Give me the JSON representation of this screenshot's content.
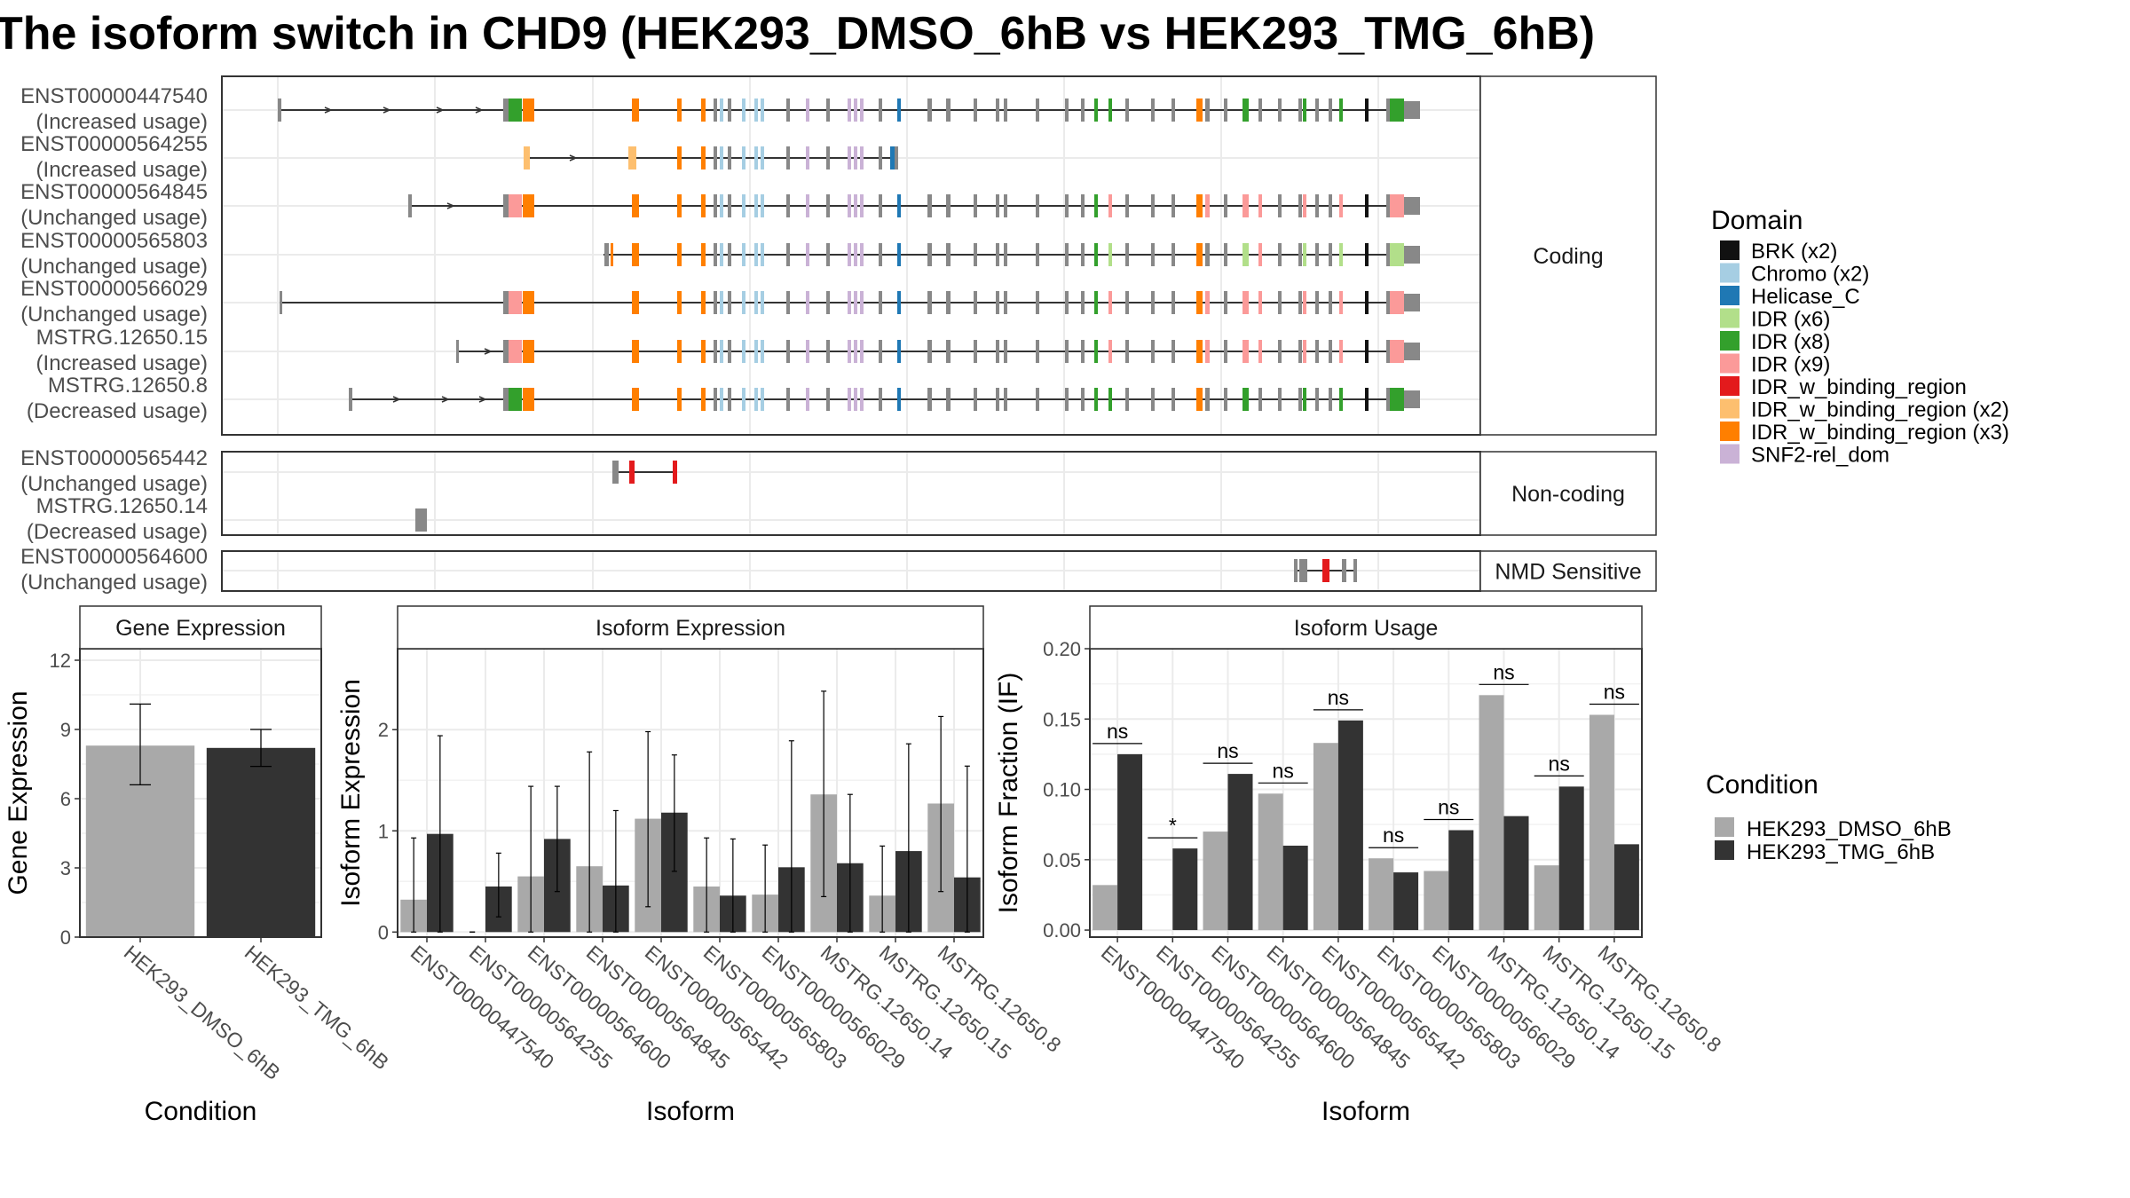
{
  "title": "The isoform switch in CHD9 (HEK293_DMSO_6hB vs HEK293_TMG_6hB)",
  "domain_legend": {
    "title": "Domain",
    "items": [
      {
        "label": "BRK (x2)",
        "color": "#111111"
      },
      {
        "label": "Chromo (x2)",
        "color": "#a6cee3"
      },
      {
        "label": "Helicase_C",
        "color": "#1f78b4"
      },
      {
        "label": "IDR (x6)",
        "color": "#b2df8a"
      },
      {
        "label": "IDR (x8)",
        "color": "#33a02c"
      },
      {
        "label": "IDR (x9)",
        "color": "#fb9a99"
      },
      {
        "label": "IDR_w_binding_region",
        "color": "#e31a1c"
      },
      {
        "label": "IDR_w_binding_region (x2)",
        "color": "#fdbf6f"
      },
      {
        "label": "IDR_w_binding_region (x3)",
        "color": "#ff7f00"
      },
      {
        "label": "SNF2-rel_dom",
        "color": "#cab2d6"
      }
    ]
  },
  "condition_legend": {
    "title": "Condition",
    "items": [
      {
        "label": "HEK293_DMSO_6hB",
        "color": "#a9a9a9"
      },
      {
        "label": "HEK293_TMG_6hB",
        "color": "#333333"
      }
    ]
  },
  "structure_panels": [
    {
      "strip": "Coding",
      "transcripts": [
        {
          "id": "ENST00000447540",
          "usage": "(Increased usage)"
        },
        {
          "id": "ENST00000564255",
          "usage": "(Increased usage)"
        },
        {
          "id": "ENST00000564845",
          "usage": "(Unchanged usage)"
        },
        {
          "id": "ENST00000565803",
          "usage": "(Unchanged usage)"
        },
        {
          "id": "ENST00000566029",
          "usage": "(Unchanged usage)"
        },
        {
          "id": "MSTRG.12650.15",
          "usage": "(Increased usage)"
        },
        {
          "id": "MSTRG.12650.8",
          "usage": "(Decreased usage)"
        }
      ]
    },
    {
      "strip": "Non-coding",
      "transcripts": [
        {
          "id": "ENST00000565442",
          "usage": "(Unchanged usage)"
        },
        {
          "id": "MSTRG.12650.14",
          "usage": "(Decreased usage)"
        }
      ]
    },
    {
      "strip": "NMD Sensitive",
      "transcripts": [
        {
          "id": "ENST00000564600",
          "usage": "(Unchanged usage)"
        }
      ]
    }
  ],
  "chart_data": [
    {
      "type": "bar",
      "title": "Gene Expression",
      "xlabel": "Condition",
      "ylabel": "Gene Expression",
      "categories": [
        "HEK293_DMSO_6hB",
        "HEK293_TMG_6hB"
      ],
      "values": [
        8.3,
        8.2
      ],
      "err_low": [
        6.6,
        7.4
      ],
      "err_high": [
        10.1,
        9.0
      ],
      "ylim": [
        0,
        12.5
      ],
      "yticks": [
        0,
        3,
        6,
        9,
        12
      ],
      "ytick_labels": [
        "0",
        "3",
        "6",
        "9",
        "12"
      ]
    },
    {
      "type": "bar",
      "title": "Isoform Expression",
      "xlabel": "Isoform",
      "ylabel": "Isoform Expression",
      "categories": [
        "ENST00000447540",
        "ENST00000564255",
        "ENST00000564600",
        "ENST00000564845",
        "ENST00000565442",
        "ENST00000565803",
        "ENST00000566029",
        "MSTRG.12650.14",
        "MSTRG.12650.15",
        "MSTRG.12650.8"
      ],
      "series": [
        {
          "name": "HEK293_DMSO_6hB",
          "values": [
            0.32,
            0.0,
            0.55,
            0.65,
            1.12,
            0.45,
            0.37,
            1.36,
            0.36,
            1.27
          ],
          "err_low": [
            0.0,
            0.0,
            0.0,
            0.0,
            0.25,
            0.0,
            0.0,
            0.35,
            0.0,
            0.4
          ],
          "err_high": [
            0.93,
            0.0,
            1.44,
            1.78,
            1.98,
            0.93,
            0.86,
            2.38,
            0.85,
            2.13
          ]
        },
        {
          "name": "HEK293_TMG_6hB",
          "values": [
            0.97,
            0.45,
            0.92,
            0.46,
            1.18,
            0.36,
            0.64,
            0.68,
            0.8,
            0.54
          ],
          "err_low": [
            0.0,
            0.15,
            0.4,
            0.0,
            0.6,
            0.0,
            0.0,
            0.0,
            0.0,
            0.0
          ],
          "err_high": [
            1.94,
            0.78,
            1.44,
            1.2,
            1.75,
            0.92,
            1.89,
            1.36,
            1.86,
            1.64
          ]
        }
      ],
      "ylim": [
        -0.05,
        2.8
      ],
      "yticks": [
        0,
        1,
        2
      ],
      "ytick_labels": [
        "0",
        "1",
        "2"
      ]
    },
    {
      "type": "bar",
      "title": "Isoform Usage",
      "xlabel": "Isoform",
      "ylabel": "Isoform Fraction (IF)",
      "categories": [
        "ENST00000447540",
        "ENST00000564255",
        "ENST00000564600",
        "ENST00000564845",
        "ENST00000565442",
        "ENST00000565803",
        "ENST00000566029",
        "MSTRG.12650.14",
        "MSTRG.12650.15",
        "MSTRG.12650.8"
      ],
      "series": [
        {
          "name": "HEK293_DMSO_6hB",
          "values": [
            0.032,
            0.0,
            0.07,
            0.097,
            0.133,
            0.051,
            0.042,
            0.167,
            0.046,
            0.153
          ]
        },
        {
          "name": "HEK293_TMG_6hB",
          "values": [
            0.125,
            0.058,
            0.111,
            0.06,
            0.149,
            0.041,
            0.071,
            0.081,
            0.102,
            0.061
          ]
        }
      ],
      "significance": [
        "ns",
        "*",
        "ns",
        "ns",
        "ns",
        "ns",
        "ns",
        "ns",
        "ns",
        "ns"
      ],
      "ylim": [
        -0.005,
        0.2
      ],
      "yticks": [
        0.0,
        0.05,
        0.1,
        0.15,
        0.2
      ],
      "ytick_labels": [
        "0.00",
        "0.05",
        "0.10",
        "0.15",
        "0.20"
      ]
    }
  ]
}
